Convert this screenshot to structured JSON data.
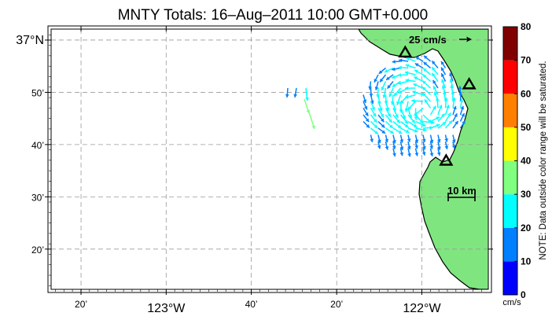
{
  "title": "MNTY Totals: 16–Aug–2011 10:00 GMT+0.000",
  "x_ticks": [
    {
      "lon": -123.333,
      "text": "20’",
      "major": false
    },
    {
      "lon": -123.0,
      "text": "123°W",
      "major": true
    },
    {
      "lon": -122.667,
      "text": "40’",
      "major": false
    },
    {
      "lon": -122.333,
      "text": "20’",
      "major": false
    },
    {
      "lon": -122.0,
      "text": "122°W",
      "major": true
    }
  ],
  "y_ticks": [
    {
      "lat": 37.0,
      "text": "37°N",
      "major": true
    },
    {
      "lat": 36.8333,
      "text": "50’",
      "major": false
    },
    {
      "lat": 36.6667,
      "text": "40’",
      "major": false
    },
    {
      "lat": 36.5,
      "text": "30’",
      "major": false
    },
    {
      "lat": 36.3333,
      "text": "20’",
      "major": false
    }
  ],
  "map_extent": {
    "lon_min": -123.45,
    "lon_max": -121.74,
    "lat_min": 36.205,
    "lat_max": 37.035
  },
  "reference_vector": {
    "label": "25 cm/s",
    "speed": 25
  },
  "scale_bar": {
    "label": "10 km",
    "km": 10
  },
  "stations": [
    {
      "lon": -122.065,
      "lat": 36.96
    },
    {
      "lon": -121.815,
      "lat": 36.8585
    },
    {
      "lon": -121.905,
      "lat": 36.615
    }
  ],
  "colorbar": {
    "ticks": [
      "0",
      "10",
      "20",
      "30",
      "40",
      "50",
      "60",
      "70",
      "80"
    ],
    "colors": [
      "#0000ff",
      "#0080ff",
      "#00ffff",
      "#80ff80",
      "#ffff00",
      "#ff8000",
      "#ff0000",
      "#800000"
    ],
    "unit": "cm/s",
    "note": "NOTE: Data outside color range will be saturated."
  },
  "colors": {
    "land": "#7fe67f",
    "ocean": "#ffffff",
    "grid": "#9a9a9a",
    "coast": "#000000"
  }
}
